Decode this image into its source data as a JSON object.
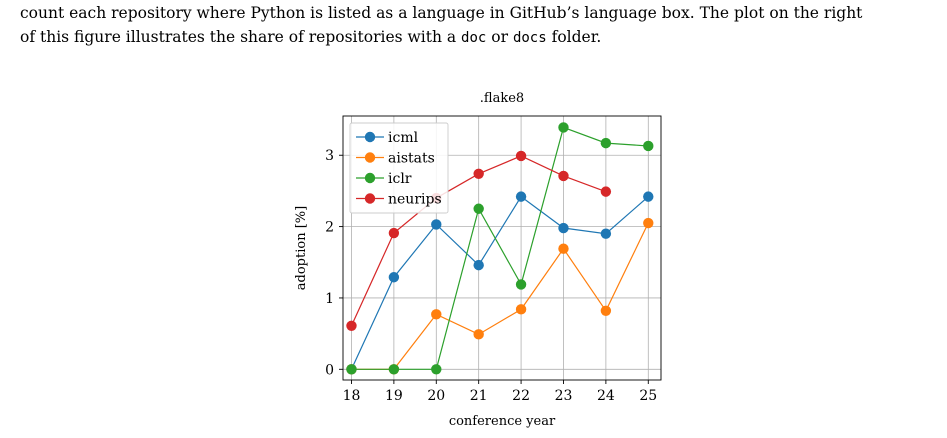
{
  "paragraph": {
    "line1": "count each repository where Python is listed as a language in GitHub’s language box. The plot on the right",
    "line2_before_doc": "of this figure illustrates the share of repositories with a ",
    "doc_code": "doc",
    "or_word": " or ",
    "docs_code": "docs",
    "line2_after": " folder."
  },
  "chart_data": {
    "type": "line",
    "title": ".flake8",
    "xlabel": "conference year",
    "ylabel": "adoption [%]",
    "x": [
      18,
      19,
      20,
      21,
      22,
      23,
      24,
      25
    ],
    "xlim": [
      17.8,
      25.3
    ],
    "ylim": [
      -0.15,
      3.55
    ],
    "yticks": [
      0,
      1,
      2,
      3
    ],
    "grid": true,
    "legend": "top-left",
    "series": [
      {
        "name": "icml",
        "color": "#1f77b4",
        "values": [
          0.0,
          1.29,
          2.03,
          1.46,
          2.42,
          1.98,
          1.9,
          2.42
        ]
      },
      {
        "name": "aistats",
        "color": "#ff7f0e",
        "values": [
          0.0,
          0.0,
          0.77,
          0.49,
          0.84,
          1.69,
          0.82,
          2.05
        ]
      },
      {
        "name": "iclr",
        "color": "#2ca02c",
        "values": [
          0.0,
          0.0,
          0.0,
          2.25,
          1.19,
          3.39,
          3.17,
          3.13
        ]
      },
      {
        "name": "neurips",
        "color": "#d62728",
        "values": [
          0.61,
          1.91,
          2.4,
          2.74,
          2.99,
          2.71,
          2.49,
          null
        ]
      }
    ]
  }
}
